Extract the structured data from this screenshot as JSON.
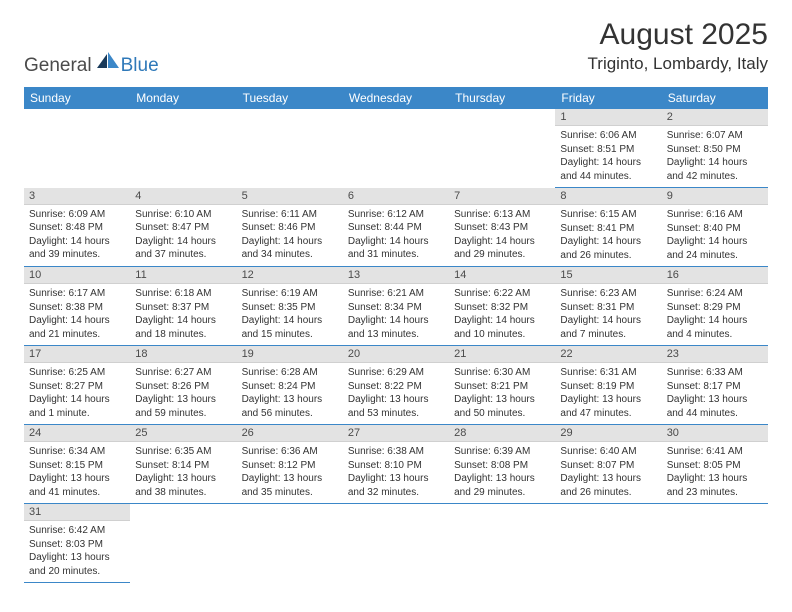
{
  "logo": {
    "text_left": "General",
    "text_right": "Blue",
    "dark_color": "#4b4b4b",
    "blue_color": "#2f79b9"
  },
  "title": "August 2025",
  "location": "Triginto, Lombardy, Italy",
  "header_bg": "#3b87c8",
  "header_fg": "#ffffff",
  "daynum_bg": "#e3e3e3",
  "cell_border": "#3b87c8",
  "weekdays": [
    "Sunday",
    "Monday",
    "Tuesday",
    "Wednesday",
    "Thursday",
    "Friday",
    "Saturday"
  ],
  "weeks": [
    [
      null,
      null,
      null,
      null,
      null,
      {
        "n": "1",
        "sr": "Sunrise: 6:06 AM",
        "ss": "Sunset: 8:51 PM",
        "dl": "Daylight: 14 hours and 44 minutes."
      },
      {
        "n": "2",
        "sr": "Sunrise: 6:07 AM",
        "ss": "Sunset: 8:50 PM",
        "dl": "Daylight: 14 hours and 42 minutes."
      }
    ],
    [
      {
        "n": "3",
        "sr": "Sunrise: 6:09 AM",
        "ss": "Sunset: 8:48 PM",
        "dl": "Daylight: 14 hours and 39 minutes."
      },
      {
        "n": "4",
        "sr": "Sunrise: 6:10 AM",
        "ss": "Sunset: 8:47 PM",
        "dl": "Daylight: 14 hours and 37 minutes."
      },
      {
        "n": "5",
        "sr": "Sunrise: 6:11 AM",
        "ss": "Sunset: 8:46 PM",
        "dl": "Daylight: 14 hours and 34 minutes."
      },
      {
        "n": "6",
        "sr": "Sunrise: 6:12 AM",
        "ss": "Sunset: 8:44 PM",
        "dl": "Daylight: 14 hours and 31 minutes."
      },
      {
        "n": "7",
        "sr": "Sunrise: 6:13 AM",
        "ss": "Sunset: 8:43 PM",
        "dl": "Daylight: 14 hours and 29 minutes."
      },
      {
        "n": "8",
        "sr": "Sunrise: 6:15 AM",
        "ss": "Sunset: 8:41 PM",
        "dl": "Daylight: 14 hours and 26 minutes."
      },
      {
        "n": "9",
        "sr": "Sunrise: 6:16 AM",
        "ss": "Sunset: 8:40 PM",
        "dl": "Daylight: 14 hours and 24 minutes."
      }
    ],
    [
      {
        "n": "10",
        "sr": "Sunrise: 6:17 AM",
        "ss": "Sunset: 8:38 PM",
        "dl": "Daylight: 14 hours and 21 minutes."
      },
      {
        "n": "11",
        "sr": "Sunrise: 6:18 AM",
        "ss": "Sunset: 8:37 PM",
        "dl": "Daylight: 14 hours and 18 minutes."
      },
      {
        "n": "12",
        "sr": "Sunrise: 6:19 AM",
        "ss": "Sunset: 8:35 PM",
        "dl": "Daylight: 14 hours and 15 minutes."
      },
      {
        "n": "13",
        "sr": "Sunrise: 6:21 AM",
        "ss": "Sunset: 8:34 PM",
        "dl": "Daylight: 14 hours and 13 minutes."
      },
      {
        "n": "14",
        "sr": "Sunrise: 6:22 AM",
        "ss": "Sunset: 8:32 PM",
        "dl": "Daylight: 14 hours and 10 minutes."
      },
      {
        "n": "15",
        "sr": "Sunrise: 6:23 AM",
        "ss": "Sunset: 8:31 PM",
        "dl": "Daylight: 14 hours and 7 minutes."
      },
      {
        "n": "16",
        "sr": "Sunrise: 6:24 AM",
        "ss": "Sunset: 8:29 PM",
        "dl": "Daylight: 14 hours and 4 minutes."
      }
    ],
    [
      {
        "n": "17",
        "sr": "Sunrise: 6:25 AM",
        "ss": "Sunset: 8:27 PM",
        "dl": "Daylight: 14 hours and 1 minute."
      },
      {
        "n": "18",
        "sr": "Sunrise: 6:27 AM",
        "ss": "Sunset: 8:26 PM",
        "dl": "Daylight: 13 hours and 59 minutes."
      },
      {
        "n": "19",
        "sr": "Sunrise: 6:28 AM",
        "ss": "Sunset: 8:24 PM",
        "dl": "Daylight: 13 hours and 56 minutes."
      },
      {
        "n": "20",
        "sr": "Sunrise: 6:29 AM",
        "ss": "Sunset: 8:22 PM",
        "dl": "Daylight: 13 hours and 53 minutes."
      },
      {
        "n": "21",
        "sr": "Sunrise: 6:30 AM",
        "ss": "Sunset: 8:21 PM",
        "dl": "Daylight: 13 hours and 50 minutes."
      },
      {
        "n": "22",
        "sr": "Sunrise: 6:31 AM",
        "ss": "Sunset: 8:19 PM",
        "dl": "Daylight: 13 hours and 47 minutes."
      },
      {
        "n": "23",
        "sr": "Sunrise: 6:33 AM",
        "ss": "Sunset: 8:17 PM",
        "dl": "Daylight: 13 hours and 44 minutes."
      }
    ],
    [
      {
        "n": "24",
        "sr": "Sunrise: 6:34 AM",
        "ss": "Sunset: 8:15 PM",
        "dl": "Daylight: 13 hours and 41 minutes."
      },
      {
        "n": "25",
        "sr": "Sunrise: 6:35 AM",
        "ss": "Sunset: 8:14 PM",
        "dl": "Daylight: 13 hours and 38 minutes."
      },
      {
        "n": "26",
        "sr": "Sunrise: 6:36 AM",
        "ss": "Sunset: 8:12 PM",
        "dl": "Daylight: 13 hours and 35 minutes."
      },
      {
        "n": "27",
        "sr": "Sunrise: 6:38 AM",
        "ss": "Sunset: 8:10 PM",
        "dl": "Daylight: 13 hours and 32 minutes."
      },
      {
        "n": "28",
        "sr": "Sunrise: 6:39 AM",
        "ss": "Sunset: 8:08 PM",
        "dl": "Daylight: 13 hours and 29 minutes."
      },
      {
        "n": "29",
        "sr": "Sunrise: 6:40 AM",
        "ss": "Sunset: 8:07 PM",
        "dl": "Daylight: 13 hours and 26 minutes."
      },
      {
        "n": "30",
        "sr": "Sunrise: 6:41 AM",
        "ss": "Sunset: 8:05 PM",
        "dl": "Daylight: 13 hours and 23 minutes."
      }
    ],
    [
      {
        "n": "31",
        "sr": "Sunrise: 6:42 AM",
        "ss": "Sunset: 8:03 PM",
        "dl": "Daylight: 13 hours and 20 minutes."
      },
      null,
      null,
      null,
      null,
      null,
      null
    ]
  ]
}
